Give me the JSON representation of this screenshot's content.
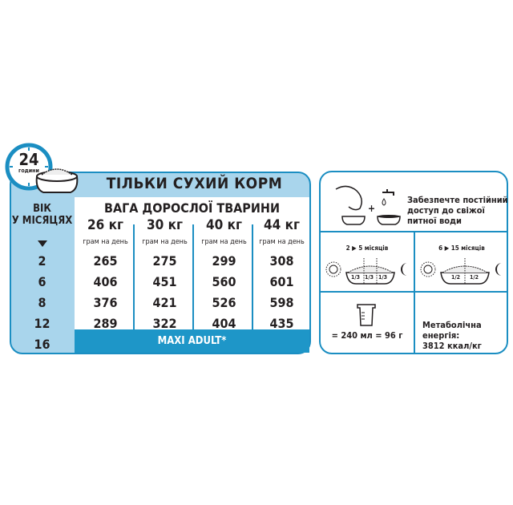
{
  "clock": {
    "number": "24",
    "unit": "години"
  },
  "title": "ТІЛЬКИ СУХИЙ КОРМ",
  "age_header": [
    "ВІК",
    "У МІСЯЦЯХ"
  ],
  "weight_header": "ВАГА ДОРОСЛОЇ ТВАРИНИ",
  "columns": [
    {
      "weight": "26 кг",
      "unit": "грам на день"
    },
    {
      "weight": "30 кг",
      "unit": "грам на день"
    },
    {
      "weight": "40 кг",
      "unit": "грам на день"
    },
    {
      "weight": "44 кг",
      "unit": "грам на день"
    }
  ],
  "rows": [
    {
      "age": "2",
      "values": [
        "265",
        "275",
        "299",
        "308"
      ]
    },
    {
      "age": "6",
      "values": [
        "406",
        "451",
        "560",
        "601"
      ]
    },
    {
      "age": "8",
      "values": [
        "376",
        "421",
        "526",
        "598"
      ]
    },
    {
      "age": "12",
      "values": [
        "289",
        "322",
        "404",
        "435"
      ]
    },
    {
      "age": "16",
      "values": []
    }
  ],
  "transition": "MAXI ADULT*",
  "water": {
    "text": [
      "Забезпечте постійний",
      "доступ до свіжої",
      "питної води"
    ]
  },
  "meals": [
    {
      "range": "2 ▶ 5 місяців",
      "fractions": [
        "1/3",
        "1/3",
        "1/3"
      ]
    },
    {
      "range": "6 ▶ 15 місяців",
      "fractions": [
        "1/2",
        "1/2"
      ]
    }
  ],
  "cup": "= 240 мл = 96 г",
  "energy": [
    "Метаболічна енергія:",
    "3812 ккал/кг"
  ],
  "colors": {
    "light_blue": "#a9d5ec",
    "border_blue": "#1b8ec2",
    "bar_blue": "#1e96c8"
  }
}
